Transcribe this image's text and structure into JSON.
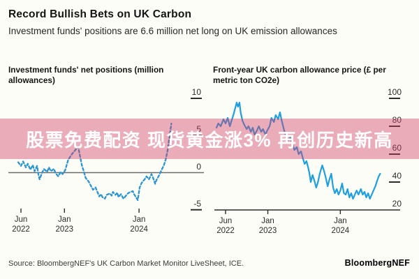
{
  "header": {
    "title": "Record Bullish Bets on UK Carbon",
    "subtitle": "Investment funds' positions are 6.6 million net long on UK emission allowances"
  },
  "banner": {
    "text": "股票免费配资 现货黄金涨3% 再创历史新高",
    "background_color": "#d23c64",
    "text_color": "#ffffff"
  },
  "footer": {
    "source": "Source: BloombergNEF's UK Carbon Market Monitor LiveSheet, ICE.",
    "brand": "BloombergNEF"
  },
  "chart_data": [
    {
      "type": "line",
      "title": "Investment funds' net positions (million allowances)",
      "ylabel": "million allowances",
      "line_style": "dashed",
      "color": "#2b93d1",
      "grid": false,
      "legend": "none",
      "zero_line": true,
      "baseline": false,
      "anchor_tick": 0,
      "x_unit": "months since Jun 2022",
      "xlim": [
        -1,
        25
      ],
      "ylim": [
        -6,
        10.5
      ],
      "y_ticks": [
        10,
        5,
        0,
        -5
      ],
      "x_ticks": [
        {
          "month": "Jun",
          "year": "2022",
          "m": 0
        },
        {
          "month": "Jan",
          "year": "2023",
          "m": 7
        },
        {
          "month": "Jan",
          "year": "2024",
          "m": 19
        }
      ],
      "series": [
        {
          "name": "Investment funds' net positions",
          "points": [
            [
              -0.45,
              1.4
            ],
            [
              0,
              0.9
            ],
            [
              0.35,
              1.5
            ],
            [
              0.8,
              0.7
            ],
            [
              1.1,
              1.2
            ],
            [
              1.5,
              0.4
            ],
            [
              1.9,
              1.0
            ],
            [
              2.2,
              0.2
            ],
            [
              2.6,
              0.9
            ],
            [
              2.8,
              -0.2
            ],
            [
              3.0,
              -0.9
            ],
            [
              3.4,
              0.0
            ],
            [
              3.7,
              0.5
            ],
            [
              4.2,
              0.1
            ],
            [
              4.5,
              0.7
            ],
            [
              4.8,
              0.2
            ],
            [
              5.3,
              0.5
            ],
            [
              5.6,
              -0.1
            ],
            [
              6.0,
              -0.5
            ],
            [
              6.4,
              0.1
            ],
            [
              6.7,
              -0.2
            ],
            [
              7.1,
              0.3
            ],
            [
              7.6,
              1.7
            ],
            [
              8.2,
              2.5
            ],
            [
              8.7,
              3.0
            ],
            [
              9.2,
              3.5
            ],
            [
              9.8,
              1.0
            ],
            [
              10.1,
              0.2
            ],
            [
              10.4,
              -0.7
            ],
            [
              10.9,
              -1.2
            ],
            [
              11.2,
              -1.7
            ],
            [
              11.6,
              -2.3
            ],
            [
              12.0,
              -2.0
            ],
            [
              12.4,
              -2.8
            ],
            [
              12.6,
              -3.2
            ],
            [
              12.9,
              -2.9
            ],
            [
              13.1,
              -3.3
            ],
            [
              13.5,
              -3.5
            ],
            [
              13.8,
              -3.0
            ],
            [
              14.3,
              -2.8
            ],
            [
              14.6,
              -3.1
            ],
            [
              14.8,
              -2.6
            ],
            [
              15.2,
              -3.0
            ],
            [
              15.5,
              -2.7
            ],
            [
              15.7,
              -3.3
            ],
            [
              16.1,
              -2.9
            ],
            [
              16.5,
              -3.5
            ],
            [
              16.9,
              -3.1
            ],
            [
              17.2,
              -2.8
            ],
            [
              17.6,
              -2.6
            ],
            [
              18.0,
              -2.5
            ],
            [
              18.2,
              -2.9
            ],
            [
              18.5,
              -3.3
            ],
            [
              18.8,
              -3.7
            ],
            [
              19.1,
              -2.0
            ],
            [
              19.4,
              -1.4
            ],
            [
              19.9,
              -0.9
            ],
            [
              20.2,
              -0.5
            ],
            [
              20.6,
              -0.9
            ],
            [
              21.0,
              -0.2
            ],
            [
              21.3,
              -0.8
            ],
            [
              21.6,
              -1.5
            ],
            [
              21.8,
              -1.0
            ],
            [
              22.2,
              -0.4
            ],
            [
              22.6,
              0.3
            ],
            [
              23.0,
              1.0
            ],
            [
              23.3,
              1.8
            ],
            [
              23.6,
              3.0
            ],
            [
              23.9,
              4.8
            ],
            [
              24.2,
              6.6
            ]
          ]
        }
      ]
    },
    {
      "type": "line",
      "title": "Front-year UK carbon allowance price (£ per metric ton CO2e)",
      "ylabel": "£ per metric ton CO2e",
      "line_style": "solid",
      "color": "#1e9fe0",
      "grid": false,
      "legend": "none",
      "zero_line": false,
      "baseline": true,
      "anchor_tick": 20,
      "x_unit": "months since Jun 2022",
      "xlim": [
        -2,
        26
      ],
      "ylim": [
        18,
        100
      ],
      "y_ticks": [
        100,
        80,
        60,
        40,
        20
      ],
      "x_ticks": [
        {
          "month": "Jun",
          "year": "2022",
          "m": 0
        },
        {
          "month": "Jan",
          "year": "2023",
          "m": 7
        },
        {
          "month": "Jan",
          "year": "2024",
          "m": 19
        }
      ],
      "series": [
        {
          "name": "Front-year UK carbon allowance price",
          "points": [
            [
              -1.5,
              79
            ],
            [
              -1.2,
              82
            ],
            [
              -0.8,
              80
            ],
            [
              -0.35,
              85
            ],
            [
              0,
              82
            ],
            [
              0.35,
              86
            ],
            [
              0.7,
              80
            ],
            [
              1.0,
              84
            ],
            [
              1.3,
              88
            ],
            [
              1.6,
              93
            ],
            [
              1.85,
              97
            ],
            [
              2.05,
              94
            ],
            [
              2.3,
              97
            ],
            [
              2.5,
              90
            ],
            [
              2.8,
              84
            ],
            [
              3.1,
              81
            ],
            [
              3.5,
              78
            ],
            [
              3.8,
              80
            ],
            [
              4.2,
              76
            ],
            [
              4.5,
              79
            ],
            [
              4.8,
              74
            ],
            [
              5.2,
              77
            ],
            [
              5.5,
              80
            ],
            [
              5.9,
              76
            ],
            [
              6.2,
              78
            ],
            [
              6.6,
              74
            ],
            [
              6.9,
              77
            ],
            [
              7.3,
              80
            ],
            [
              7.6,
              86
            ],
            [
              8.0,
              83
            ],
            [
              8.3,
              88
            ],
            [
              8.7,
              85
            ],
            [
              9.0,
              90
            ],
            [
              9.3,
              84
            ],
            [
              9.7,
              77
            ],
            [
              10.0,
              73
            ],
            [
              10.4,
              70
            ],
            [
              10.7,
              72
            ],
            [
              11.1,
              67
            ],
            [
              11.4,
              63
            ],
            [
              11.8,
              65
            ],
            [
              12.1,
              60
            ],
            [
              12.5,
              62
            ],
            [
              12.8,
              57
            ],
            [
              13.1,
              53
            ],
            [
              13.4,
              55
            ],
            [
              13.7,
              50
            ],
            [
              13.9,
              46
            ],
            [
              14.1,
              40
            ],
            [
              14.4,
              45
            ],
            [
              14.7,
              41
            ],
            [
              15.0,
              36
            ],
            [
              15.3,
              40
            ],
            [
              15.6,
              46
            ],
            [
              16.0,
              52
            ],
            [
              16.3,
              48
            ],
            [
              16.6,
              43
            ],
            [
              16.9,
              37
            ],
            [
              17.2,
              42
            ],
            [
              17.5,
              46
            ],
            [
              17.8,
              36
            ],
            [
              18.1,
              32
            ],
            [
              18.4,
              35
            ],
            [
              18.7,
              31
            ],
            [
              19.0,
              34
            ],
            [
              19.3,
              39
            ],
            [
              19.6,
              32
            ],
            [
              19.9,
              31
            ],
            [
              20.2,
              35
            ],
            [
              20.5,
              29
            ],
            [
              20.8,
              32
            ],
            [
              21.1,
              28
            ],
            [
              21.4,
              31
            ],
            [
              21.7,
              34
            ],
            [
              22.0,
              31
            ],
            [
              22.4,
              35
            ],
            [
              22.7,
              31
            ],
            [
              23.0,
              33
            ],
            [
              23.3,
              29
            ],
            [
              23.6,
              32
            ],
            [
              23.9,
              28
            ],
            [
              24.2,
              31
            ],
            [
              24.5,
              34
            ],
            [
              24.8,
              37
            ],
            [
              25.1,
              41
            ],
            [
              25.35,
              44
            ],
            [
              25.6,
              46
            ]
          ]
        }
      ]
    }
  ]
}
